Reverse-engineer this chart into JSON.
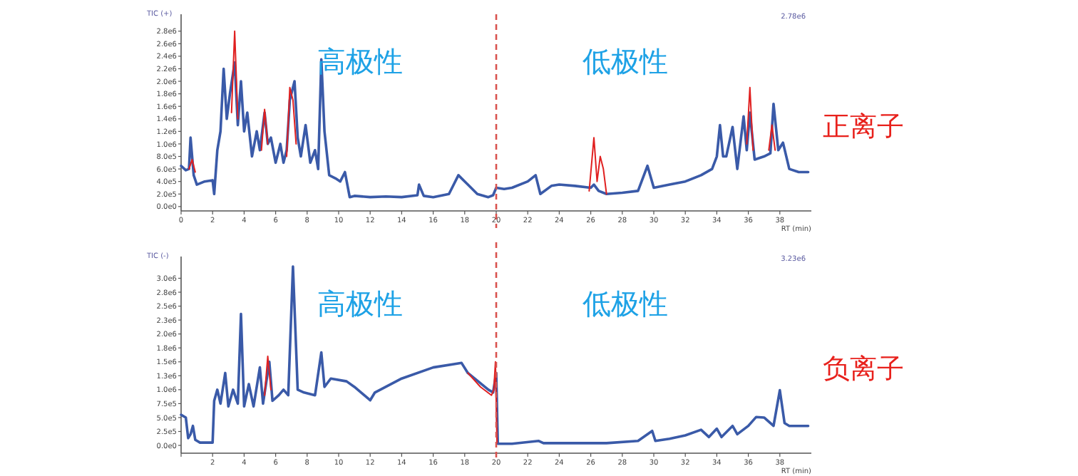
{
  "chart_data": [
    {
      "type": "line",
      "title": "正离子",
      "ylabel": "TIC (+)",
      "xlabel": "RT (min)",
      "annotations": [
        "高极性",
        "低极性",
        "2.78e6"
      ],
      "xlim": [
        0,
        40
      ],
      "ylim": [
        -70000,
        3070000
      ],
      "xticks": [
        0,
        2,
        4,
        6,
        8,
        10,
        12,
        14,
        16,
        18,
        20,
        22,
        24,
        26,
        28,
        30,
        32,
        34,
        36,
        38
      ],
      "yticks": [
        {
          "value": 0,
          "label": "0.0e0"
        },
        {
          "value": 200000,
          "label": "2.0e5"
        },
        {
          "value": 400000,
          "label": "4.0e5"
        },
        {
          "value": 600000,
          "label": "6.0e5"
        },
        {
          "value": 800000,
          "label": "8.0e5"
        },
        {
          "value": 1000000,
          "label": "1.0e6"
        },
        {
          "value": 1200000,
          "label": "1.2e6"
        },
        {
          "value": 1400000,
          "label": "1.4e6"
        },
        {
          "value": 1600000,
          "label": "1.6e6"
        },
        {
          "value": 1800000,
          "label": "1.8e6"
        },
        {
          "value": 2000000,
          "label": "2.0e6"
        },
        {
          "value": 2200000,
          "label": "2.2e6"
        },
        {
          "value": 2400000,
          "label": "2.4e6"
        },
        {
          "value": 2600000,
          "label": "2.6e6"
        },
        {
          "value": 2800000,
          "label": "2.8e6"
        }
      ],
      "ref_lines": [
        {
          "axis": "x",
          "value": 20,
          "color": "#d9534f",
          "line_style": "dashed"
        }
      ],
      "grid": false,
      "marker": "none",
      "line_style": "solid",
      "series": [
        {
          "color": "#3a5aa8",
          "x": [
            0,
            0.3,
            0.5,
            0.6,
            0.8,
            1.0,
            1.5,
            2.0,
            2.1,
            2.3,
            2.5,
            2.7,
            2.9,
            3.1,
            3.4,
            3.6,
            3.8,
            4.0,
            4.2,
            4.5,
            4.8,
            5.0,
            5.3,
            5.5,
            5.7,
            6.0,
            6.3,
            6.5,
            6.7,
            6.9,
            7.2,
            7.4,
            7.6,
            7.9,
            8.2,
            8.5,
            8.7,
            8.9,
            9.1,
            9.4,
            9.8,
            10.1,
            10.4,
            10.7,
            11,
            12,
            13,
            14,
            15,
            15.1,
            15.4,
            16,
            17,
            17.6,
            18.2,
            18.8,
            19.5,
            19.8,
            20,
            20.5,
            21,
            22,
            22.5,
            22.8,
            23.5,
            24,
            25,
            26,
            26.2,
            26.5,
            27,
            28,
            29,
            29.6,
            30,
            31,
            32,
            33,
            33.7,
            34,
            34.2,
            34.4,
            34.6,
            35,
            35.3,
            35.7,
            35.9,
            36.1,
            36.4,
            37,
            37.4,
            37.6,
            37.9,
            38.2,
            38.6,
            39.2,
            39.8
          ],
          "values": [
            650000.0,
            580000.0,
            600000.0,
            1100000.0,
            500000.0,
            350000.0,
            400000.0,
            420000.0,
            200000.0,
            900000.0,
            1200000.0,
            2200000.0,
            1400000.0,
            1800000.0,
            2300000.0,
            1300000.0,
            2000000.0,
            1200000.0,
            1500000.0,
            800000.0,
            1200000.0,
            900000.0,
            1500000.0,
            1000000.0,
            1100000.0,
            700000.0,
            1000000.0,
            700000.0,
            900000.0,
            1700000.0,
            2000000.0,
            1100000.0,
            800000.0,
            1300000.0,
            700000.0,
            900000.0,
            600000.0,
            2350000.0,
            1200000.0,
            500000.0,
            450000.0,
            400000.0,
            550000.0,
            150000.0,
            170000.0,
            150000.0,
            160000.0,
            150000.0,
            180000.0,
            350000.0,
            170000.0,
            150000.0,
            200000.0,
            500000.0,
            350000.0,
            200000.0,
            150000.0,
            180000.0,
            300000.0,
            280000.0,
            300000.0,
            400000.0,
            500000.0,
            200000.0,
            330000.0,
            350000.0,
            330000.0,
            300000.0,
            350000.0,
            250000.0,
            200000.0,
            220000.0,
            250000.0,
            650000.0,
            300000.0,
            350000.0,
            400000.0,
            500000.0,
            600000.0,
            800000.0,
            1300000.0,
            800000.0,
            800000.0,
            1270000.0,
            600000.0,
            1440000.0,
            900000.0,
            1500000.0,
            750000.0,
            800000.0,
            850000.0,
            1640000.0,
            900000.0,
            1020000.0,
            600000.0,
            550000.0,
            550000.0
          ]
        },
        {
          "color": "#e02020",
          "x": [
            0.5,
            0.7,
            0.9,
            null,
            3.2,
            3.4,
            3.6,
            null,
            5.1,
            5.3,
            5.5,
            null,
            6.7,
            6.9,
            7.1,
            7.3,
            null,
            25.9,
            26.2,
            26.4,
            26.6,
            26.8,
            27.0,
            null,
            35.9,
            36.1,
            36.3,
            null,
            37.3,
            37.5,
            37.7
          ],
          "values": [
            600000.0,
            750000.0,
            550000.0,
            null,
            1500000.0,
            2800000.0,
            1400000.0,
            null,
            900000.0,
            1550000.0,
            1000000.0,
            null,
            800000.0,
            1900000.0,
            1700000.0,
            1000000.0,
            null,
            250000.0,
            1100000.0,
            400000.0,
            800000.0,
            600000.0,
            200000.0,
            null,
            1000000.0,
            1900000.0,
            900000.0,
            null,
            900000.0,
            1300000.0,
            900000.0
          ]
        }
      ]
    },
    {
      "type": "line",
      "title": "负离子",
      "ylabel": "TIC (-)",
      "xlabel": "RT (min)",
      "annotations": [
        "高极性",
        "低极性",
        "3.23e6"
      ],
      "xlim": [
        0,
        40
      ],
      "ylim": [
        -140000,
        3390000
      ],
      "xticks": [
        {
          "value": 0,
          "label": null
        },
        2,
        4,
        6,
        8,
        10,
        12,
        14,
        16,
        18,
        20,
        22,
        24,
        26,
        28,
        30,
        32,
        34,
        36,
        38
      ],
      "yticks": [
        {
          "value": 0,
          "label": "0.0e0"
        },
        {
          "value": 250000,
          "label": "2.5e5"
        },
        {
          "value": 500000,
          "label": "5.0e5"
        },
        {
          "value": 750000,
          "label": "7.5e5"
        },
        {
          "value": 1000000,
          "label": "1.0e6"
        },
        {
          "value": 1250000,
          "label": "1.3e6"
        },
        {
          "value": 1500000,
          "label": "1.5e6"
        },
        {
          "value": 1750000,
          "label": "1.8e6"
        },
        {
          "value": 2000000,
          "label": "2.0e6"
        },
        {
          "value": 2250000,
          "label": "2.3e6"
        },
        {
          "value": 2500000,
          "label": "2.5e6"
        },
        {
          "value": 2750000,
          "label": "2.8e6"
        },
        {
          "value": 3000000,
          "label": "3.0e6"
        }
      ],
      "ref_lines": [
        {
          "axis": "x",
          "value": 20,
          "color": "#d9534f",
          "line_style": "dashed"
        }
      ],
      "grid": false,
      "marker": "none",
      "line_style": "solid",
      "series": [
        {
          "color": "#3a5aa8",
          "x": [
            0,
            0.3,
            0.45,
            0.6,
            0.75,
            0.9,
            1.2,
            2.0,
            2.1,
            2.3,
            2.5,
            2.8,
            3.0,
            3.3,
            3.6,
            3.8,
            4.0,
            4.3,
            4.6,
            5.0,
            5.2,
            5.6,
            5.8,
            6.2,
            6.5,
            6.8,
            7.1,
            7.4,
            7.8,
            8.5,
            8.9,
            9.1,
            9.5,
            10.5,
            11,
            12,
            12.3,
            14,
            16,
            17.8,
            18.2,
            19.5,
            19.8,
            20,
            20.1,
            21,
            22.7,
            23,
            25,
            27,
            29,
            29.9,
            30.1,
            31,
            32,
            33,
            33.5,
            34,
            34.3,
            35,
            35.3,
            36,
            36.5,
            37,
            37.6,
            38,
            38.3,
            38.6,
            39,
            39.8
          ],
          "values": [
            550000.0,
            500000.0,
            130000.0,
            200000.0,
            350000.0,
            100000.0,
            50000.0,
            50000.0,
            800000.0,
            1000000.0,
            750000.0,
            1300000.0,
            700000.0,
            1000000.0,
            750000.0,
            2360000.0,
            700000.0,
            1100000.0,
            700000.0,
            1400000.0,
            750000.0,
            1500000.0,
            800000.0,
            900000.0,
            1000000.0,
            900000.0,
            3210000.0,
            1000000.0,
            950000.0,
            900000.0,
            1670000.0,
            1050000.0,
            1200000.0,
            1150000.0,
            1050000.0,
            810000.0,
            950000.0,
            1200000.0,
            1400000.0,
            1480000.0,
            1300000.0,
            1000000.0,
            950000.0,
            1300000.0,
            30000.0,
            30000.0,
            80000.0,
            40000.0,
            40000.0,
            40000.0,
            80000.0,
            260000.0,
            80000.0,
            120000.0,
            180000.0,
            280000.0,
            150000.0,
            300000.0,
            150000.0,
            350000.0,
            200000.0,
            350000.0,
            510000.0,
            500000.0,
            350000.0,
            990000.0,
            400000.0,
            350000.0,
            350000.0,
            350000.0
          ]
        },
        {
          "color": "#e02020",
          "x": [
            5.3,
            5.5,
            5.7,
            null,
            18.2,
            19,
            19.7,
            19.85,
            19.95,
            20.05
          ],
          "values": [
            900000.0,
            1600000.0,
            1000000.0,
            null,
            1300000.0,
            1050000.0,
            900000.0,
            1000000.0,
            1500000.0,
            50000.0
          ]
        }
      ]
    }
  ]
}
